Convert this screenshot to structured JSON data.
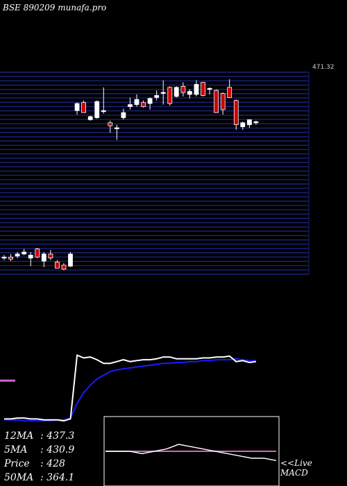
{
  "title": "BSE 890209 munafa.pro",
  "stats": [
    {
      "label": "12MA",
      "value": "437.3"
    },
    {
      "label": "5MA",
      "value": "430.9"
    },
    {
      "label": "Price",
      "value": "428"
    },
    {
      "label": "50MA",
      "value": "364.1"
    }
  ],
  "macd_label_1": "<<Live",
  "macd_label_2": "MACD",
  "chart_data": {
    "type": "candlestick",
    "price_label": "471.32",
    "ylim": [
      280,
      480
    ],
    "colors": {
      "up": "#ffffff",
      "down": "#cc0000",
      "grid": "#1a237e",
      "ma_short": "#ffffff",
      "ma_long": "#1a1aff",
      "signal": "#cc66cc"
    },
    "candles": [
      {
        "o": 296,
        "h": 299,
        "l": 294,
        "c": 297
      },
      {
        "o": 297,
        "h": 300,
        "l": 293,
        "c": 295
      },
      {
        "o": 298,
        "h": 302,
        "l": 296,
        "c": 300
      },
      {
        "o": 300,
        "h": 305,
        "l": 299,
        "c": 302
      },
      {
        "o": 296,
        "h": 302,
        "l": 288,
        "c": 299
      },
      {
        "o": 305,
        "h": 306,
        "l": 296,
        "c": 297
      },
      {
        "o": 293,
        "h": 302,
        "l": 287,
        "c": 300
      },
      {
        "o": 300,
        "h": 304,
        "l": 294,
        "c": 296
      },
      {
        "o": 292,
        "h": 294,
        "l": 286,
        "c": 286
      },
      {
        "o": 289,
        "h": 291,
        "l": 284,
        "c": 285
      },
      {
        "o": 288,
        "h": 302,
        "l": 287,
        "c": 300
      },
      {
        "o": 442,
        "h": 450,
        "l": 438,
        "c": 449
      },
      {
        "o": 450,
        "h": 452,
        "l": 440,
        "c": 440
      },
      {
        "o": 433,
        "h": 437,
        "l": 432,
        "c": 436
      },
      {
        "o": 435,
        "h": 452,
        "l": 434,
        "c": 451
      },
      {
        "o": 442,
        "h": 465,
        "l": 439,
        "c": 442
      },
      {
        "o": 430,
        "h": 432,
        "l": 420,
        "c": 427
      },
      {
        "o": 425,
        "h": 428,
        "l": 413,
        "c": 425
      },
      {
        "o": 435,
        "h": 444,
        "l": 433,
        "c": 440
      },
      {
        "o": 446,
        "h": 455,
        "l": 443,
        "c": 448
      },
      {
        "o": 448,
        "h": 458,
        "l": 446,
        "c": 453
      },
      {
        "o": 450,
        "h": 452,
        "l": 445,
        "c": 446
      },
      {
        "o": 449,
        "h": 455,
        "l": 443,
        "c": 454
      },
      {
        "o": 455,
        "h": 462,
        "l": 452,
        "c": 457
      },
      {
        "o": 460,
        "h": 472,
        "l": 448,
        "c": 460
      },
      {
        "o": 465,
        "h": 466,
        "l": 447,
        "c": 449
      },
      {
        "o": 456,
        "h": 466,
        "l": 455,
        "c": 465
      },
      {
        "o": 466,
        "h": 470,
        "l": 456,
        "c": 460
      },
      {
        "o": 458,
        "h": 463,
        "l": 454,
        "c": 461
      },
      {
        "o": 458,
        "h": 472,
        "l": 456,
        "c": 468
      },
      {
        "o": 470,
        "h": 470,
        "l": 456,
        "c": 457
      },
      {
        "o": 463,
        "h": 465,
        "l": 458,
        "c": 464
      },
      {
        "o": 462,
        "h": 463,
        "l": 440,
        "c": 440
      },
      {
        "o": 459,
        "h": 460,
        "l": 438,
        "c": 443
      },
      {
        "o": 465,
        "h": 473,
        "l": 455,
        "c": 455
      },
      {
        "o": 452,
        "h": 453,
        "l": 423,
        "c": 428
      },
      {
        "o": 426,
        "h": 431,
        "l": 423,
        "c": 430
      },
      {
        "o": 428,
        "h": 432,
        "l": 425,
        "c": 433
      },
      {
        "o": 430,
        "h": 432,
        "l": 428,
        "c": 431
      }
    ],
    "ma_short": [
      285,
      285,
      286,
      286,
      285,
      285,
      284,
      284,
      284,
      283,
      285,
      355,
      352,
      353,
      350,
      346,
      346,
      348,
      350,
      348,
      349,
      350,
      350,
      351,
      353,
      353,
      351,
      351,
      351,
      351,
      352,
      352,
      353,
      353,
      354,
      348,
      349,
      347,
      348
    ],
    "ma_long": [
      284,
      284,
      284,
      283,
      283,
      283,
      283,
      283,
      284,
      284,
      286,
      302,
      314,
      322,
      329,
      333,
      337,
      339,
      340,
      341,
      342,
      343,
      344,
      345,
      346,
      346,
      347,
      347,
      348,
      348,
      349,
      349,
      350,
      350,
      350,
      351,
      350,
      349,
      349
    ],
    "macd": [
      15,
      15,
      15,
      14,
      15,
      16,
      18,
      17,
      16,
      15,
      14,
      13,
      12,
      12,
      11
    ],
    "macd_signal": [
      15,
      15,
      15,
      15,
      15,
      15,
      15,
      15,
      15,
      15,
      15,
      15,
      15,
      15,
      15
    ],
    "side_stub": [
      327
    ]
  }
}
